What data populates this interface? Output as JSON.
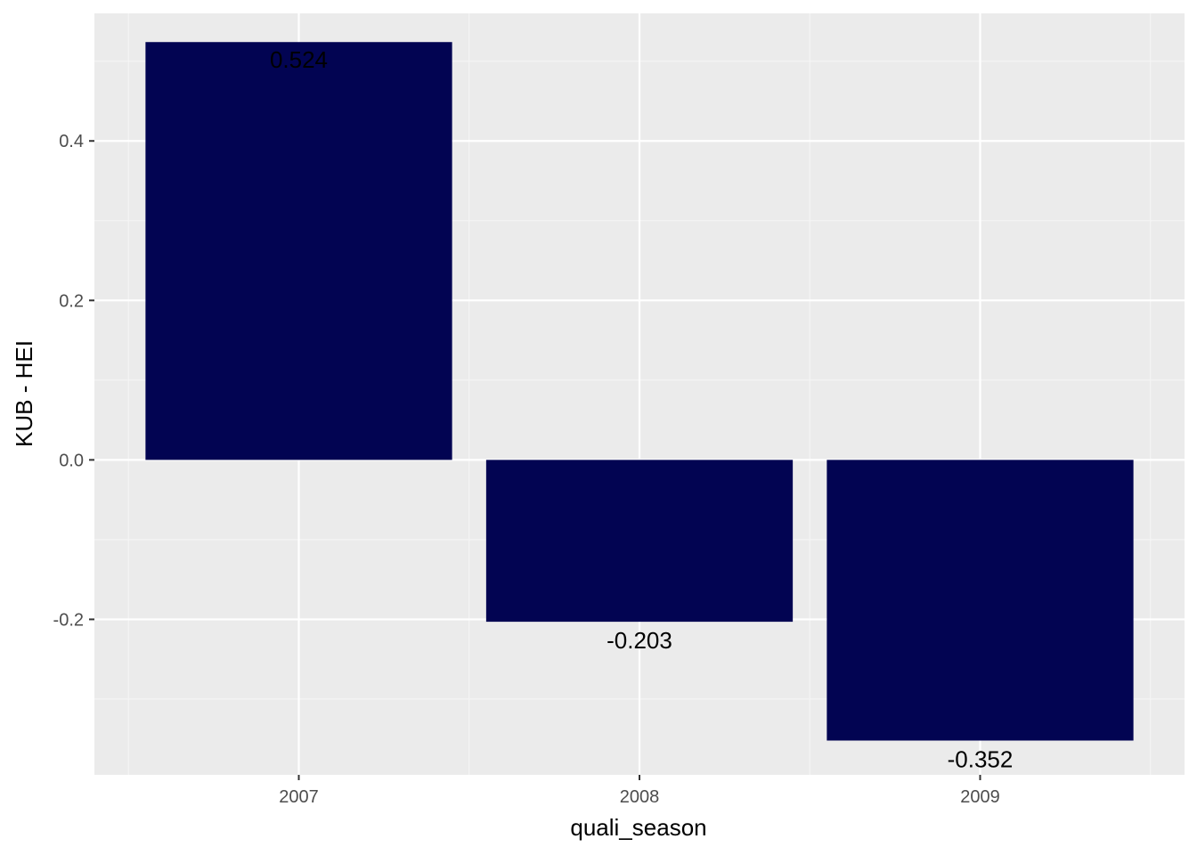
{
  "chart_data": {
    "type": "bar",
    "categories": [
      "2007",
      "2008",
      "2009"
    ],
    "values": [
      0.524,
      -0.203,
      -0.352
    ],
    "value_labels": [
      "0.524",
      "-0.203",
      "-0.352"
    ],
    "xlabel": "quali_season",
    "ylabel": "KUB - HEI",
    "ylim": [
      -0.395,
      0.56
    ],
    "yticks": [
      -0.2,
      0.0,
      0.2,
      0.4
    ],
    "ytick_labels": [
      "-0.2",
      "0.0",
      "0.2",
      "0.4"
    ],
    "grid": true,
    "legend": "none",
    "colors": {
      "bar": "#020452",
      "panel_background": "#ebebeb",
      "grid_major": "#ffffff",
      "grid_minor": "#f5f5f5"
    }
  }
}
